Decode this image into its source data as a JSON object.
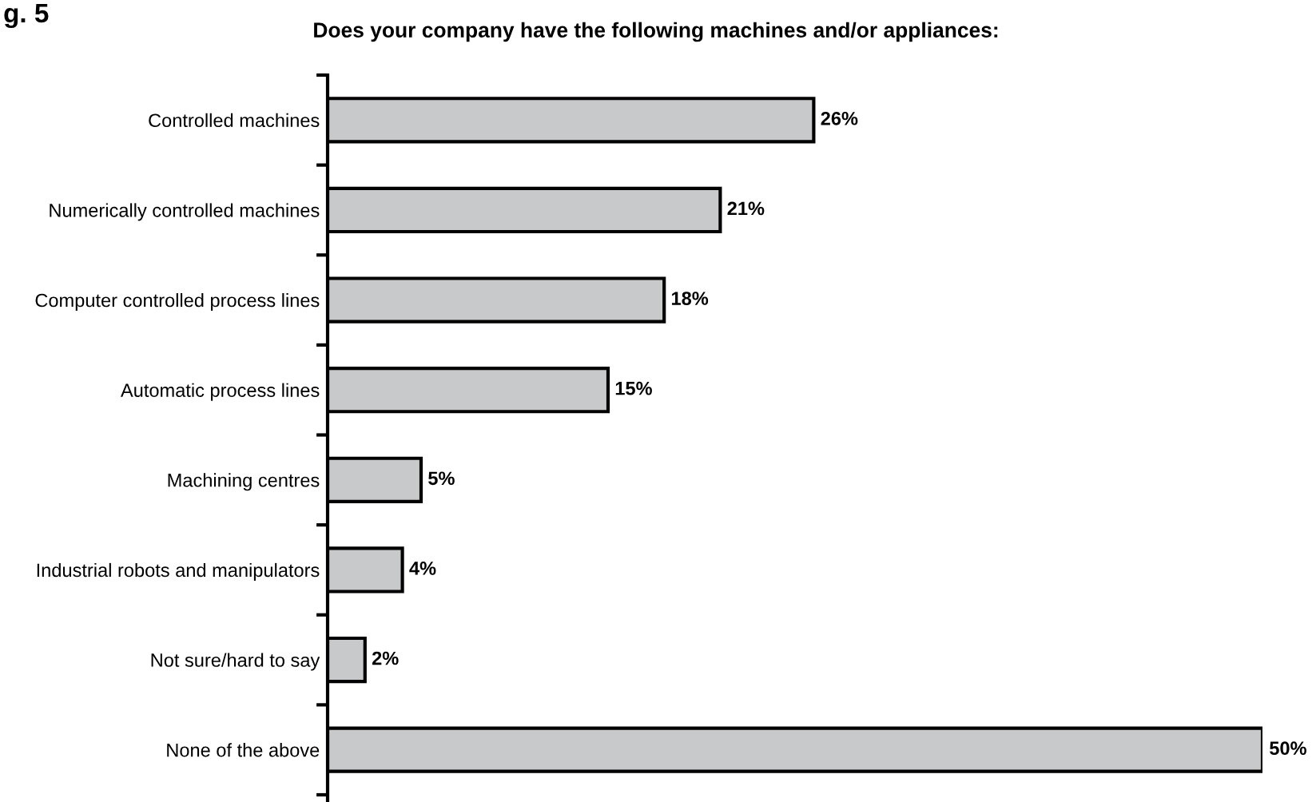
{
  "chart_data": {
    "type": "bar",
    "orientation": "horizontal",
    "title": "Does your company have the following machines and/or appliances:",
    "annotations": [
      "g. 5"
    ],
    "categories": [
      "Controlled machines",
      "Numerically controlled machines",
      "Computer controlled process lines",
      "Automatic process lines",
      "Machining centres",
      "Industrial robots and manipulators",
      "Not sure/hard to say",
      "None of the above"
    ],
    "values": [
      26,
      21,
      18,
      15,
      5,
      4,
      2,
      50
    ],
    "value_labels": [
      "26%",
      "21%",
      "18%",
      "15%",
      "5%",
      "4%",
      "2%",
      "50%"
    ],
    "color": "#c8c9cb",
    "grid": false,
    "legend": false
  }
}
